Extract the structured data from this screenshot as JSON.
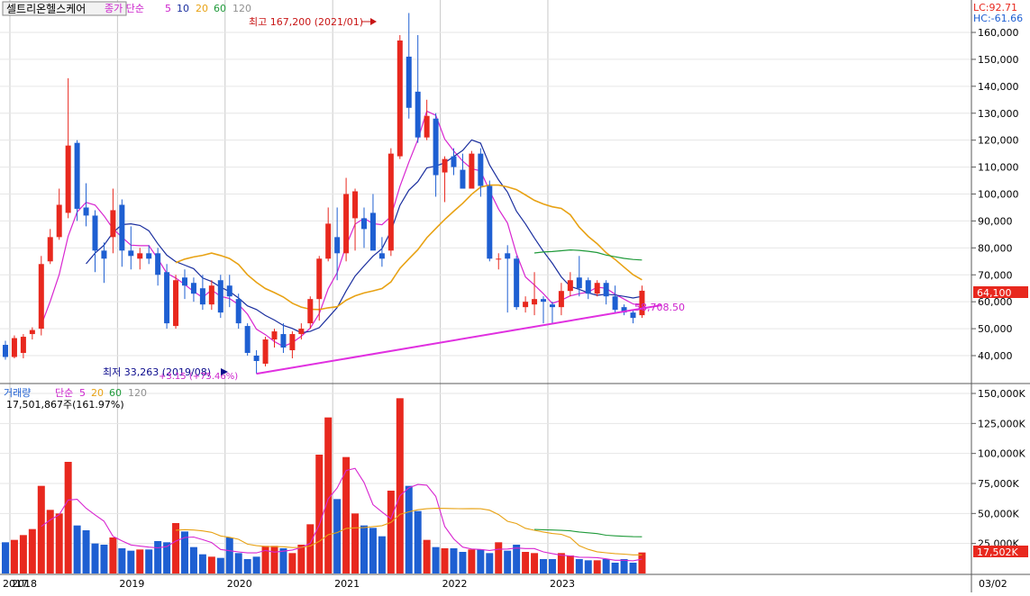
{
  "header": {
    "stock_name": "셀트리온헬스케어",
    "ma_prefix": "종가 단순",
    "ma_periods": [
      "5",
      "10",
      "20",
      "60",
      "120"
    ],
    "lc_label": "LC:92.71",
    "hc_label": "HC:-61.66"
  },
  "volume_header": {
    "title": "거래량",
    "ma_prefix": "단순",
    "ma_periods": [
      "5",
      "20",
      "60",
      "120"
    ],
    "info": "17,501,867주(161.97%)"
  },
  "annotations": {
    "high": "최고 167,200 (2021/01)",
    "low": "최저 33,263 (2019/08)",
    "low_change": "+3.15 (+75.46%)",
    "trendline_value": "58,708.50"
  },
  "price_axis": {
    "labels": [
      "40,000",
      "50,000",
      "60,000",
      "70,000",
      "80,000",
      "90,000",
      "100,000",
      "110,000",
      "120,000",
      "130,000",
      "140,000",
      "150,000",
      "160,000"
    ],
    "current": "64,100"
  },
  "volume_axis": {
    "labels": [
      "25,000K",
      "50,000K",
      "75,000K",
      "100,000K",
      "125,000K",
      "150,000K"
    ],
    "current": "17,502K"
  },
  "x_axis": {
    "labels": [
      "2017",
      "2018",
      "2019",
      "2020",
      "2021",
      "2022",
      "2023"
    ],
    "date_box": "03/02"
  },
  "colors": {
    "up": "#e8281e",
    "down": "#1e5fd2",
    "ma5": "#d826d0",
    "ma10": "#1a2e9e",
    "ma20": "#e8a214",
    "ma60": "#1f9a3a",
    "ma120": "#808080",
    "trendline": "#e030e0"
  },
  "chart_data": {
    "type": "candlestick",
    "interval": "monthly",
    "start": "2016-12",
    "end": "2023-03",
    "price_range": [
      30000,
      170000
    ],
    "volume_range_k": [
      0,
      150000
    ],
    "candles": [
      {
        "o": 44000,
        "h": 45500,
        "l": 38500,
        "c": 39500,
        "v": 26000
      },
      {
        "o": 39500,
        "h": 47500,
        "l": 39000,
        "c": 46500,
        "v": 28000
      },
      {
        "o": 41000,
        "h": 48000,
        "l": 39000,
        "c": 47000,
        "v": 32000
      },
      {
        "o": 48000,
        "h": 50500,
        "l": 46000,
        "c": 49500,
        "v": 37000
      },
      {
        "o": 50000,
        "h": 77000,
        "l": 47500,
        "c": 74000,
        "v": 73000
      },
      {
        "o": 75000,
        "h": 87000,
        "l": 74000,
        "c": 84000,
        "v": 53000
      },
      {
        "o": 84000,
        "h": 102000,
        "l": 83000,
        "c": 96000,
        "v": 50000
      },
      {
        "o": 93000,
        "h": 143000,
        "l": 91000,
        "c": 118000,
        "v": 93000
      },
      {
        "o": 119000,
        "h": 120000,
        "l": 90000,
        "c": 94500,
        "v": 40000
      },
      {
        "o": 95000,
        "h": 104000,
        "l": 88000,
        "c": 92000,
        "v": 36000
      },
      {
        "o": 92000,
        "h": 94000,
        "l": 71000,
        "c": 79000,
        "v": 25000
      },
      {
        "o": 79000,
        "h": 82000,
        "l": 67000,
        "c": 76000,
        "v": 24000
      },
      {
        "o": 84000,
        "h": 102000,
        "l": 78000,
        "c": 94000,
        "v": 30000
      },
      {
        "o": 96000,
        "h": 98000,
        "l": 73000,
        "c": 79000,
        "v": 21000
      },
      {
        "o": 79000,
        "h": 88000,
        "l": 72000,
        "c": 77000,
        "v": 19000
      },
      {
        "o": 76000,
        "h": 80000,
        "l": 72000,
        "c": 78000,
        "v": 20000
      },
      {
        "o": 78000,
        "h": 81000,
        "l": 74000,
        "c": 76000,
        "v": 20000
      },
      {
        "o": 78000,
        "h": 80000,
        "l": 66000,
        "c": 70000,
        "v": 27000
      },
      {
        "o": 71000,
        "h": 74000,
        "l": 50000,
        "c": 52000,
        "v": 26000
      },
      {
        "o": 51000,
        "h": 70000,
        "l": 50000,
        "c": 68000,
        "v": 42000
      },
      {
        "o": 69000,
        "h": 72000,
        "l": 61000,
        "c": 66000,
        "v": 35000
      },
      {
        "o": 67000,
        "h": 69000,
        "l": 60000,
        "c": 63000,
        "v": 22000
      },
      {
        "o": 65000,
        "h": 70000,
        "l": 57000,
        "c": 59000,
        "v": 16000
      },
      {
        "o": 59000,
        "h": 68000,
        "l": 57000,
        "c": 66000,
        "v": 14000
      },
      {
        "o": 68000,
        "h": 70000,
        "l": 54000,
        "c": 56000,
        "v": 13000
      },
      {
        "o": 66000,
        "h": 70000,
        "l": 58000,
        "c": 62000,
        "v": 30000
      },
      {
        "o": 61000,
        "h": 63000,
        "l": 50000,
        "c": 52000,
        "v": 17000
      },
      {
        "o": 51000,
        "h": 52000,
        "l": 40000,
        "c": 41000,
        "v": 12000
      },
      {
        "o": 40000,
        "h": 42000,
        "l": 33263,
        "c": 38000,
        "v": 14000
      },
      {
        "o": 37000,
        "h": 47000,
        "l": 36000,
        "c": 46000,
        "v": 23000
      },
      {
        "o": 46000,
        "h": 50000,
        "l": 43000,
        "c": 49000,
        "v": 23000
      },
      {
        "o": 48000,
        "h": 52000,
        "l": 41000,
        "c": 43000,
        "v": 21000
      },
      {
        "o": 42000,
        "h": 49000,
        "l": 39000,
        "c": 48000,
        "v": 17000
      },
      {
        "o": 48000,
        "h": 52000,
        "l": 46000,
        "c": 50000,
        "v": 24000
      },
      {
        "o": 52000,
        "h": 62000,
        "l": 50000,
        "c": 61000,
        "v": 41000
      },
      {
        "o": 61000,
        "h": 77000,
        "l": 53000,
        "c": 76000,
        "v": 99000
      },
      {
        "o": 76000,
        "h": 95000,
        "l": 75000,
        "c": 89000,
        "v": 130000
      },
      {
        "o": 84000,
        "h": 95000,
        "l": 68000,
        "c": 78000,
        "v": 62000
      },
      {
        "o": 78000,
        "h": 106000,
        "l": 75000,
        "c": 100000,
        "v": 97000
      },
      {
        "o": 91000,
        "h": 102000,
        "l": 79000,
        "c": 101000,
        "v": 50000
      },
      {
        "o": 91000,
        "h": 95000,
        "l": 80000,
        "c": 87000,
        "v": 40000
      },
      {
        "o": 93000,
        "h": 100000,
        "l": 80000,
        "c": 79000,
        "v": 38000
      },
      {
        "o": 78000,
        "h": 84000,
        "l": 73000,
        "c": 76000,
        "v": 31000
      },
      {
        "o": 79000,
        "h": 117000,
        "l": 77000,
        "c": 115000,
        "v": 69000
      },
      {
        "o": 114000,
        "h": 159000,
        "l": 113000,
        "c": 157000,
        "v": 146000
      },
      {
        "o": 151000,
        "h": 167200,
        "l": 128000,
        "c": 132000,
        "v": 73000
      },
      {
        "o": 138000,
        "h": 159000,
        "l": 119000,
        "c": 121000,
        "v": 52000
      },
      {
        "o": 121000,
        "h": 135000,
        "l": 120000,
        "c": 129000,
        "v": 28000
      },
      {
        "o": 128000,
        "h": 130000,
        "l": 99000,
        "c": 107000,
        "v": 22000
      },
      {
        "o": 108000,
        "h": 114000,
        "l": 97000,
        "c": 113000,
        "v": 21000
      },
      {
        "o": 114000,
        "h": 117000,
        "l": 107000,
        "c": 110000,
        "v": 21000
      },
      {
        "o": 109000,
        "h": 115000,
        "l": 102000,
        "c": 102000,
        "v": 18000
      },
      {
        "o": 102000,
        "h": 116000,
        "l": 102000,
        "c": 115000,
        "v": 20000
      },
      {
        "o": 115000,
        "h": 117000,
        "l": 99000,
        "c": 103000,
        "v": 20000
      },
      {
        "o": 103000,
        "h": 105000,
        "l": 75000,
        "c": 76000,
        "v": 17000
      },
      {
        "o": 76000,
        "h": 78000,
        "l": 72000,
        "c": 76000,
        "v": 26000
      },
      {
        "o": 78000,
        "h": 81000,
        "l": 56000,
        "c": 76000,
        "v": 19000
      },
      {
        "o": 76000,
        "h": 77000,
        "l": 57000,
        "c": 58000,
        "v": 24000
      },
      {
        "o": 58000,
        "h": 62000,
        "l": 56000,
        "c": 60000,
        "v": 18000
      },
      {
        "o": 59000,
        "h": 71000,
        "l": 55000,
        "c": 61000,
        "v": 17000
      },
      {
        "o": 61000,
        "h": 62000,
        "l": 52000,
        "c": 60000,
        "v": 12000
      },
      {
        "o": 59000,
        "h": 60000,
        "l": 52000,
        "c": 58000,
        "v": 12000
      },
      {
        "o": 58000,
        "h": 67000,
        "l": 55000,
        "c": 64000,
        "v": 17000
      },
      {
        "o": 64000,
        "h": 71000,
        "l": 62000,
        "c": 68000,
        "v": 15000
      },
      {
        "o": 69000,
        "h": 77000,
        "l": 62000,
        "c": 65000,
        "v": 12000
      },
      {
        "o": 68000,
        "h": 69000,
        "l": 61000,
        "c": 63000,
        "v": 11000
      },
      {
        "o": 63000,
        "h": 68000,
        "l": 62000,
        "c": 67000,
        "v": 11000
      },
      {
        "o": 67000,
        "h": 68000,
        "l": 59000,
        "c": 62000,
        "v": 12000
      },
      {
        "o": 62000,
        "h": 66000,
        "l": 56000,
        "c": 57000,
        "v": 9000
      },
      {
        "o": 58000,
        "h": 59000,
        "l": 55000,
        "c": 56000,
        "v": 12000
      },
      {
        "o": 56000,
        "h": 57000,
        "l": 52000,
        "c": 54000,
        "v": 9000
      },
      {
        "o": 55000,
        "h": 66000,
        "l": 54000,
        "c": 64100,
        "v": 17502
      }
    ]
  }
}
